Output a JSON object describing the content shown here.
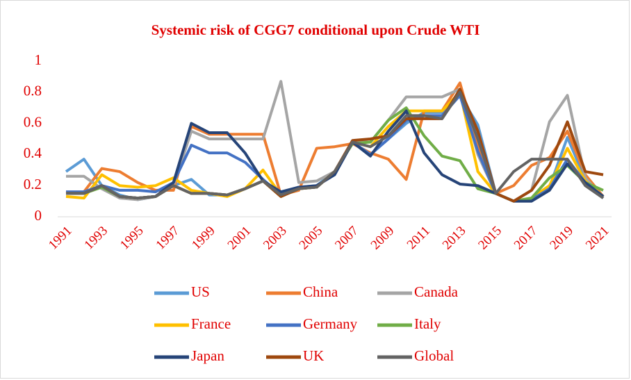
{
  "chart_data": {
    "type": "line",
    "title": "Systemic risk of CGG7 conditional upon Crude WTI",
    "categories": [
      "1991",
      null,
      "1993",
      null,
      "1995",
      null,
      "1997",
      null,
      "1999",
      null,
      "2001",
      null,
      "2003",
      null,
      "2005",
      null,
      "2007",
      null,
      "2009",
      null,
      "2011",
      null,
      "2013",
      null,
      "2015",
      null,
      "2017",
      null,
      "2019",
      null,
      "2021"
    ],
    "ylim": [
      0,
      1
    ],
    "yticks": [
      0,
      0.2,
      0.4,
      0.6,
      0.8,
      1
    ],
    "grid": false,
    "legend": "bottom",
    "series": [
      {
        "name": "US",
        "color": "#5b9bd5",
        "values": [
          0.29,
          0.37,
          0.2,
          0.14,
          0.11,
          0.13,
          0.2,
          0.24,
          0.14,
          0.14,
          0.18,
          0.23,
          0.15,
          0.19,
          0.2,
          0.29,
          0.48,
          0.4,
          0.5,
          0.6,
          0.67,
          0.67,
          0.78,
          0.59,
          0.15,
          0.1,
          0.11,
          0.19,
          0.51,
          0.24,
          0.13
        ]
      },
      {
        "name": "China",
        "color": "#ed7d31",
        "values": [
          0.15,
          0.16,
          0.31,
          0.29,
          0.22,
          0.17,
          0.17,
          0.58,
          0.53,
          0.53,
          0.53,
          0.53,
          0.14,
          0.17,
          0.44,
          0.45,
          0.47,
          0.41,
          0.37,
          0.24,
          0.68,
          0.68,
          0.86,
          0.45,
          0.15,
          0.2,
          0.33,
          0.38,
          0.55,
          0.27,
          0.13
        ]
      },
      {
        "name": "Canada",
        "color": "#a5a5a5",
        "values": [
          0.26,
          0.26,
          0.18,
          0.12,
          0.11,
          0.13,
          0.2,
          0.55,
          0.5,
          0.5,
          0.5,
          0.5,
          0.87,
          0.22,
          0.23,
          0.29,
          0.48,
          0.48,
          0.62,
          0.77,
          0.77,
          0.77,
          0.82,
          0.4,
          0.15,
          0.1,
          0.17,
          0.61,
          0.78,
          0.25,
          0.12
        ]
      },
      {
        "name": "France",
        "color": "#ffc000",
        "values": [
          0.13,
          0.12,
          0.27,
          0.2,
          0.19,
          0.2,
          0.25,
          0.17,
          0.15,
          0.13,
          0.18,
          0.3,
          0.14,
          0.18,
          0.19,
          0.29,
          0.48,
          0.45,
          0.58,
          0.68,
          0.68,
          0.68,
          0.8,
          0.29,
          0.15,
          0.1,
          0.12,
          0.2,
          0.44,
          0.23,
          0.13
        ]
      },
      {
        "name": "Germany",
        "color": "#4472c4",
        "values": [
          0.16,
          0.16,
          0.2,
          0.17,
          0.17,
          0.16,
          0.22,
          0.46,
          0.41,
          0.41,
          0.35,
          0.24,
          0.14,
          0.18,
          0.2,
          0.27,
          0.48,
          0.4,
          0.5,
          0.62,
          0.65,
          0.65,
          0.78,
          0.42,
          0.15,
          0.1,
          0.11,
          0.18,
          0.37,
          0.22,
          0.13
        ]
      },
      {
        "name": "Italy",
        "color": "#70ad47",
        "values": [
          0.15,
          0.15,
          0.19,
          0.13,
          0.12,
          0.13,
          0.2,
          0.15,
          0.15,
          0.14,
          0.18,
          0.23,
          0.13,
          0.18,
          0.19,
          0.29,
          0.47,
          0.48,
          0.62,
          0.7,
          0.52,
          0.39,
          0.36,
          0.18,
          0.15,
          0.1,
          0.12,
          0.25,
          0.33,
          0.22,
          0.17
        ]
      },
      {
        "name": "Japan",
        "color": "#264478",
        "values": [
          0.15,
          0.15,
          0.2,
          0.13,
          0.12,
          0.13,
          0.22,
          0.6,
          0.54,
          0.54,
          0.41,
          0.23,
          0.16,
          0.19,
          0.2,
          0.27,
          0.48,
          0.39,
          0.55,
          0.68,
          0.41,
          0.27,
          0.21,
          0.2,
          0.15,
          0.1,
          0.1,
          0.17,
          0.34,
          0.22,
          0.13
        ]
      },
      {
        "name": "UK",
        "color": "#9e480e",
        "values": [
          0.15,
          0.15,
          0.2,
          0.13,
          0.12,
          0.13,
          0.2,
          0.15,
          0.15,
          0.14,
          0.18,
          0.23,
          0.13,
          0.18,
          0.19,
          0.29,
          0.49,
          0.5,
          0.52,
          0.63,
          0.63,
          0.63,
          0.82,
          0.55,
          0.15,
          0.1,
          0.17,
          0.33,
          0.61,
          0.29,
          0.27
        ]
      },
      {
        "name": "Global",
        "color": "#636363",
        "values": [
          0.15,
          0.15,
          0.2,
          0.13,
          0.12,
          0.13,
          0.2,
          0.15,
          0.15,
          0.14,
          0.18,
          0.23,
          0.14,
          0.18,
          0.19,
          0.29,
          0.48,
          0.45,
          0.52,
          0.65,
          0.65,
          0.63,
          0.8,
          0.5,
          0.15,
          0.29,
          0.37,
          0.37,
          0.37,
          0.2,
          0.12
        ]
      }
    ]
  }
}
